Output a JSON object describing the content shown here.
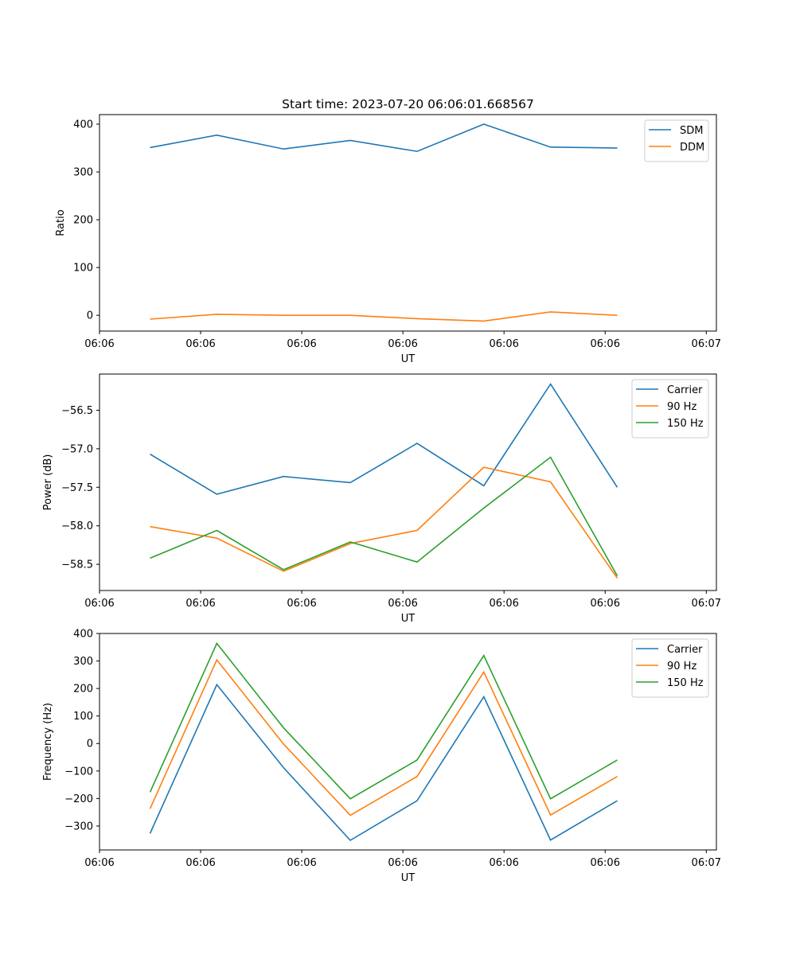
{
  "title": "Start time: 2023-07-20 06:06:01.668567",
  "chart_data": [
    {
      "type": "line",
      "ylabel": "Ratio",
      "xlabel": "UT",
      "xlim": [
        0,
        6.1
      ],
      "ylim": [
        -33,
        420
      ],
      "yticks": [
        0,
        100,
        200,
        300,
        400
      ],
      "ytick_labels": [
        "0",
        "100",
        "200",
        "300",
        "400"
      ],
      "xticks": [
        0,
        1,
        2,
        3,
        4,
        5,
        6
      ],
      "xtick_labels": [
        "06:06",
        "06:06",
        "06:06",
        "06:06",
        "06:06",
        "06:06",
        "06:07"
      ],
      "x": [
        0.5,
        1.16,
        1.82,
        2.48,
        3.14,
        3.8,
        4.46,
        5.12
      ],
      "legend_loc": "upper right",
      "series": [
        {
          "name": "SDM",
          "color": "#1f77b4",
          "values": [
            351,
            377,
            348,
            366,
            343,
            400,
            352,
            350
          ]
        },
        {
          "name": "DDM",
          "color": "#ff7f0e",
          "values": [
            -8,
            2,
            0,
            0,
            -7,
            -12,
            7,
            0
          ]
        }
      ]
    },
    {
      "type": "line",
      "ylabel": "Power (dB)",
      "xlabel": "UT",
      "xlim": [
        0,
        6.1
      ],
      "ylim": [
        -58.84,
        -56.03
      ],
      "yticks": [
        -58.5,
        -58.0,
        -57.5,
        -57.0,
        -56.5
      ],
      "ytick_labels": [
        "−58.5",
        "−58.0",
        "−57.5",
        "−57.0",
        "−56.5"
      ],
      "xticks": [
        0,
        1,
        2,
        3,
        4,
        5,
        6
      ],
      "xtick_labels": [
        "06:06",
        "06:06",
        "06:06",
        "06:06",
        "06:06",
        "06:06",
        "06:07"
      ],
      "x": [
        0.5,
        1.16,
        1.82,
        2.48,
        3.14,
        3.8,
        4.46,
        5.12
      ],
      "legend_loc": "upper right",
      "series": [
        {
          "name": "Carrier",
          "color": "#1f77b4",
          "values": [
            -57.07,
            -57.59,
            -57.36,
            -57.44,
            -56.93,
            -57.48,
            -56.16,
            -57.5
          ]
        },
        {
          "name": "90 Hz",
          "color": "#ff7f0e",
          "values": [
            -58.01,
            -58.16,
            -58.59,
            -58.23,
            -58.06,
            -57.24,
            -57.43,
            -58.68
          ]
        },
        {
          "name": "150 Hz",
          "color": "#2ca02c",
          "values": [
            -58.42,
            -58.06,
            -58.57,
            -58.21,
            -58.47,
            -57.77,
            -57.11,
            -58.65
          ]
        }
      ]
    },
    {
      "type": "line",
      "ylabel": "Frequency (Hz)",
      "xlabel": "UT",
      "xlim": [
        0,
        6.1
      ],
      "ylim": [
        -387,
        400
      ],
      "yticks": [
        -300,
        -200,
        -100,
        0,
        100,
        200,
        300,
        400
      ],
      "ytick_labels": [
        "−300",
        "−200",
        "−100",
        "0",
        "100",
        "200",
        "300",
        "400"
      ],
      "xticks": [
        0,
        1,
        2,
        3,
        4,
        5,
        6
      ],
      "xtick_labels": [
        "06:06",
        "06:06",
        "06:06",
        "06:06",
        "06:06",
        "06:06",
        "06:07"
      ],
      "x": [
        0.5,
        1.16,
        1.82,
        2.48,
        3.14,
        3.8,
        4.46,
        5.12
      ],
      "legend_loc": "upper right",
      "series": [
        {
          "name": "Carrier",
          "color": "#1f77b4",
          "values": [
            -327,
            214,
            -88,
            -352,
            -208,
            170,
            -351,
            -208
          ]
        },
        {
          "name": "90 Hz",
          "color": "#ff7f0e",
          "values": [
            -237,
            304,
            -2,
            -261,
            -120,
            260,
            -260,
            -120
          ]
        },
        {
          "name": "150 Hz",
          "color": "#2ca02c",
          "values": [
            -177,
            364,
            57,
            -201,
            -60,
            320,
            -201,
            -60
          ]
        }
      ]
    }
  ]
}
